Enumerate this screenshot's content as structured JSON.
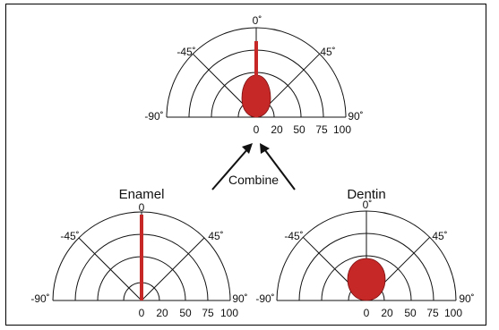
{
  "diagram": {
    "combine_label": "Combine",
    "accent_color": "#c62828",
    "tick_labels": [
      "0",
      "20",
      "50",
      "75",
      "100"
    ],
    "angle_labels": {
      "top": "0˚",
      "left45": "-45˚",
      "right45": "45˚",
      "left90": "-90˚",
      "right90": "90˚"
    },
    "plots": {
      "combined": {
        "title": ""
      },
      "enamel": {
        "title": "Enamel"
      },
      "dentin": {
        "title": "Dentin"
      }
    }
  }
}
